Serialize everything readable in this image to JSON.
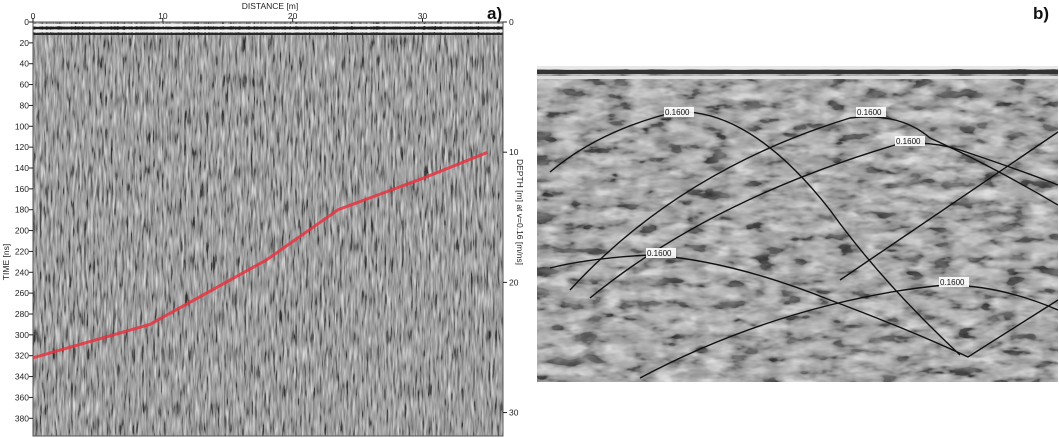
{
  "panel_a": {
    "tag": "a)",
    "top_axis": {
      "label": "DISTANCE [m]",
      "ticks": [
        "0",
        "10",
        "20",
        "30"
      ]
    },
    "left_axis": {
      "label": "TIME [ns]",
      "ticks": [
        "0",
        "20",
        "40",
        "60",
        "80",
        "100",
        "120",
        "140",
        "160",
        "180",
        "200",
        "220",
        "240",
        "260",
        "280",
        "300",
        "320",
        "340",
        "360",
        "380"
      ]
    },
    "right_axis": {
      "label": "DEPTH [m] at v=0.16 [m/ns]",
      "ticks": [
        "0",
        "10",
        "20",
        "30"
      ]
    },
    "colors": {
      "interpreted_line": "#e8343f"
    },
    "interpreted_line": {
      "points": [
        [
          0,
          322
        ],
        [
          9,
          290
        ],
        [
          18,
          228
        ],
        [
          23.5,
          180
        ],
        [
          30,
          150
        ],
        [
          35,
          125
        ]
      ]
    }
  },
  "panel_b": {
    "tag": "b)",
    "hyperbola_labels": [
      "0.1600",
      "0.1600",
      "0.1600",
      "0.1600",
      "0.1600"
    ]
  }
}
